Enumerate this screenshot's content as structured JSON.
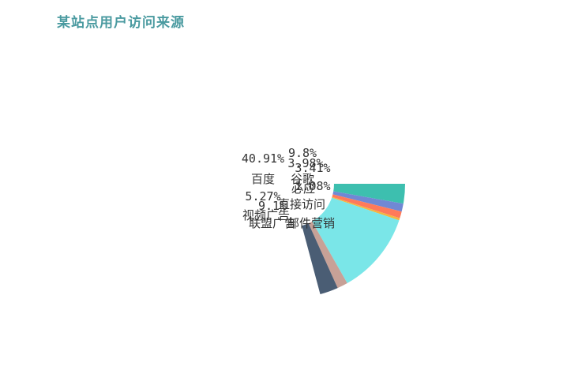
{
  "chart_data": {
    "type": "pie",
    "variant": "partial-ring",
    "title": "某站点用户访问来源",
    "slices": [
      {
        "name": "直接访问",
        "value": 9.8,
        "label": "9.8%",
        "color": "#3dbfaf"
      },
      {
        "name": "邮件营销",
        "value": 3.98,
        "label": "3.98%",
        "color": "#7088d4"
      },
      {
        "name": "谷歌",
        "value": 3.41,
        "label": "3.41%",
        "color": "#ff7a5a"
      },
      {
        "name": "必应",
        "value": 1.08,
        "label": "1.08%",
        "color": "#f4b63f"
      },
      {
        "name": "百度",
        "value": 40.91,
        "label": "40.91%",
        "color": "#7ae6e8"
      },
      {
        "name": "视频广告",
        "value": 5.27,
        "label": "5.27%",
        "color": "#c7a197"
      },
      {
        "name": "联盟广告",
        "value": 9.1,
        "label": "9.1%",
        "color": "#4a5d74"
      }
    ]
  }
}
